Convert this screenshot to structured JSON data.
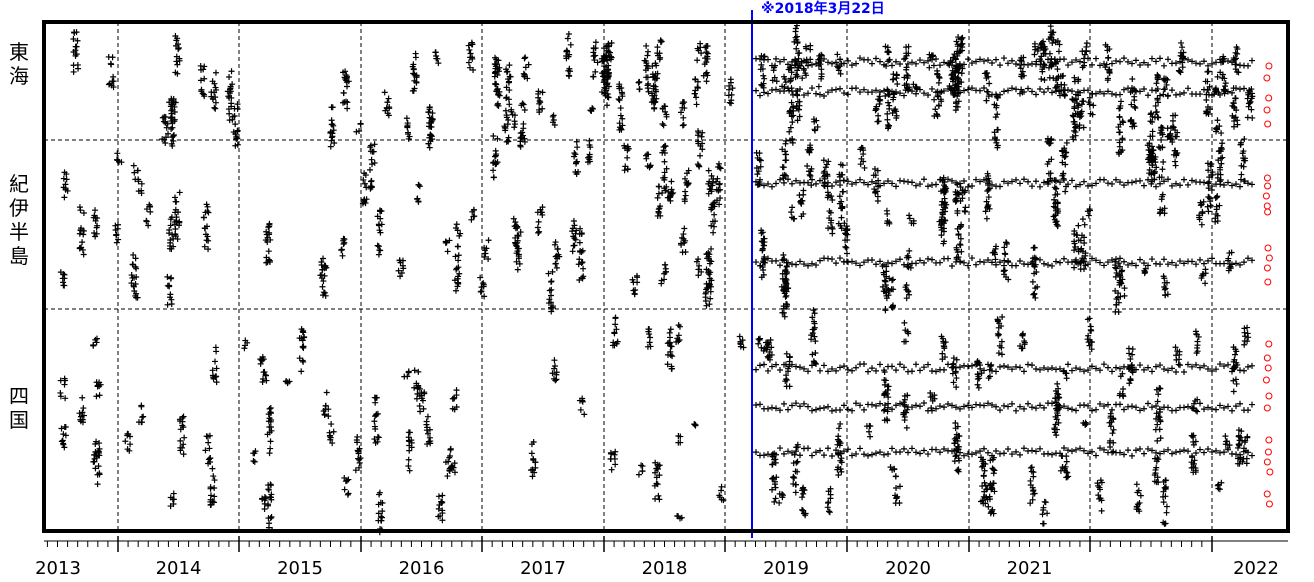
{
  "chart_data": {
    "type": "scatter",
    "title": "",
    "xlabel": "",
    "ylabel": "",
    "x_ticks": [
      "2013",
      "2014",
      "2015",
      "2016",
      "2017",
      "2018",
      "2019",
      "2020",
      "2021",
      "2022"
    ],
    "regions": [
      {
        "name": "東海",
        "label": "東\n海"
      },
      {
        "name": "紀伊半島",
        "label": "紀\n伊\n半\n島"
      },
      {
        "name": "四国",
        "label": "四\n国"
      }
    ],
    "annotation": {
      "text": "※2018年3月22日",
      "date": "2018-03-22",
      "color": "#0000ff"
    },
    "series": [
      {
        "marker": "+",
        "color": "#000000"
      },
      {
        "marker": "o",
        "color": "#ff0000"
      }
    ],
    "grid": true
  }
}
